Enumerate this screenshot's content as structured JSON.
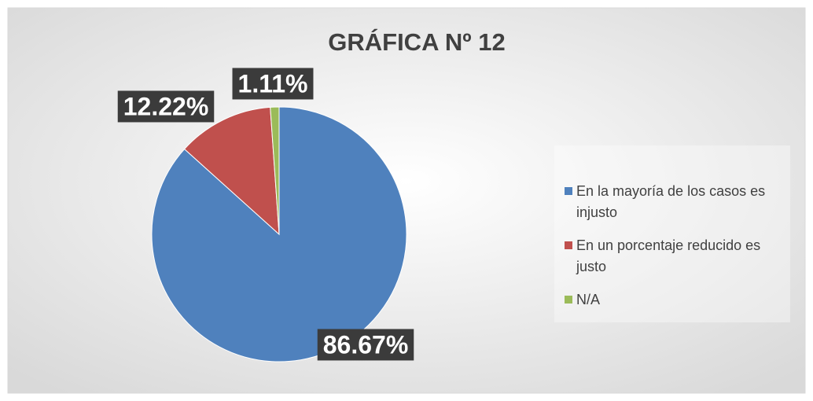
{
  "chart_data": {
    "type": "pie",
    "title": "GRÁFICA Nº 12",
    "categories": [
      "En la mayoría de los casos es injusto",
      "En un porcentaje reducido es justo",
      "N/A"
    ],
    "values": [
      86.67,
      12.22,
      1.11
    ],
    "value_labels": [
      "86.67%",
      "12.22%",
      "1.11%"
    ],
    "colors": [
      "#4f81bd",
      "#c0504d",
      "#9bbb59"
    ],
    "legend": "right"
  }
}
